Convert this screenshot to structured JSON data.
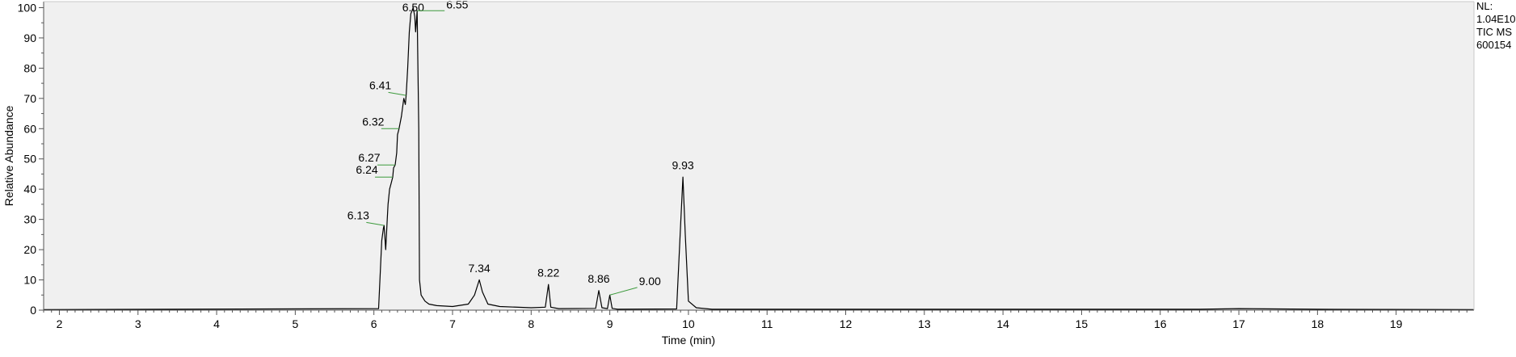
{
  "chart_data": {
    "type": "line",
    "xlabel": "Time (min)",
    "ylabel": "Relative Abundance",
    "xlim": [
      1.8,
      19.99
    ],
    "ylim": [
      0,
      102
    ],
    "xticks": [
      2,
      3,
      4,
      5,
      6,
      7,
      8,
      9,
      10,
      11,
      12,
      13,
      14,
      15,
      16,
      17,
      18,
      19
    ],
    "yticks": [
      0,
      10,
      20,
      30,
      40,
      50,
      60,
      70,
      80,
      90,
      100
    ],
    "plot_background": "#f0f0f0",
    "trace_color": "#000000",
    "leader_color": "#3c9a3c",
    "info_lines": [
      "NL:",
      "1.04E10",
      "TIC  MS",
      "600154"
    ],
    "series": [
      {
        "x": [
          1.8,
          6.06,
          6.1,
          6.12,
          6.13,
          6.15,
          6.17,
          6.18,
          6.2,
          6.22,
          6.24,
          6.25,
          6.27,
          6.29,
          6.3,
          6.32,
          6.35,
          6.38,
          6.4,
          6.41,
          6.43,
          6.45,
          6.47,
          6.5,
          6.52,
          6.53,
          6.55,
          6.57,
          6.58,
          6.6,
          6.65,
          6.7,
          6.8,
          7.0,
          7.2,
          7.28,
          7.34,
          7.38,
          7.45,
          7.6,
          8.0,
          8.18,
          8.22,
          8.25,
          8.35,
          8.82,
          8.86,
          8.9,
          8.97,
          9.0,
          9.03,
          9.1,
          9.85,
          9.9,
          9.93,
          9.96,
          10.0,
          10.1,
          10.3,
          16.5,
          17.0,
          17.5,
          18.0,
          19.99
        ],
        "y": [
          0.2,
          0.5,
          23,
          27,
          28,
          20,
          30,
          35,
          40,
          42,
          44,
          47,
          48,
          52,
          58,
          60,
          64,
          70,
          68,
          71,
          80,
          92,
          98,
          100,
          97,
          92,
          99,
          60,
          10,
          5,
          3,
          2,
          1.5,
          1.2,
          2,
          5,
          10,
          6,
          2,
          1.2,
          0.8,
          1,
          8.5,
          1,
          0.5,
          0.6,
          6.5,
          0.8,
          0.5,
          5,
          0.6,
          0.3,
          0.4,
          28,
          44,
          25,
          3,
          0.8,
          0.3,
          0.3,
          0.5,
          0.4,
          0.3,
          0.2
        ]
      }
    ],
    "peaks": [
      {
        "rt": "6.13",
        "x": 6.13,
        "y": 28,
        "label_y": 29
      },
      {
        "rt": "6.24",
        "x": 6.24,
        "y": 44,
        "label_y": 44
      },
      {
        "rt": "6.27",
        "x": 6.27,
        "y": 48,
        "label_y": 48
      },
      {
        "rt": "6.32",
        "x": 6.32,
        "y": 60,
        "label_y": 60
      },
      {
        "rt": "6.41",
        "x": 6.41,
        "y": 71,
        "label_y": 72
      },
      {
        "rt": "6.50",
        "x": 6.5,
        "y": 100,
        "label_y": 102
      },
      {
        "rt": "6.55",
        "x": 6.55,
        "y": 99,
        "label_y": 99
      },
      {
        "rt": "7.34",
        "x": 7.34,
        "y": 10,
        "label_y": 12
      },
      {
        "rt": "8.22",
        "x": 8.22,
        "y": 8.5,
        "label_y": 10.5
      },
      {
        "rt": "8.86",
        "x": 8.86,
        "y": 6.5,
        "label_y": 8.5
      },
      {
        "rt": "9.00",
        "x": 9.0,
        "y": 5,
        "label_y": 7.5
      },
      {
        "rt": "9.93",
        "x": 9.93,
        "y": 44,
        "label_y": 46
      }
    ]
  }
}
